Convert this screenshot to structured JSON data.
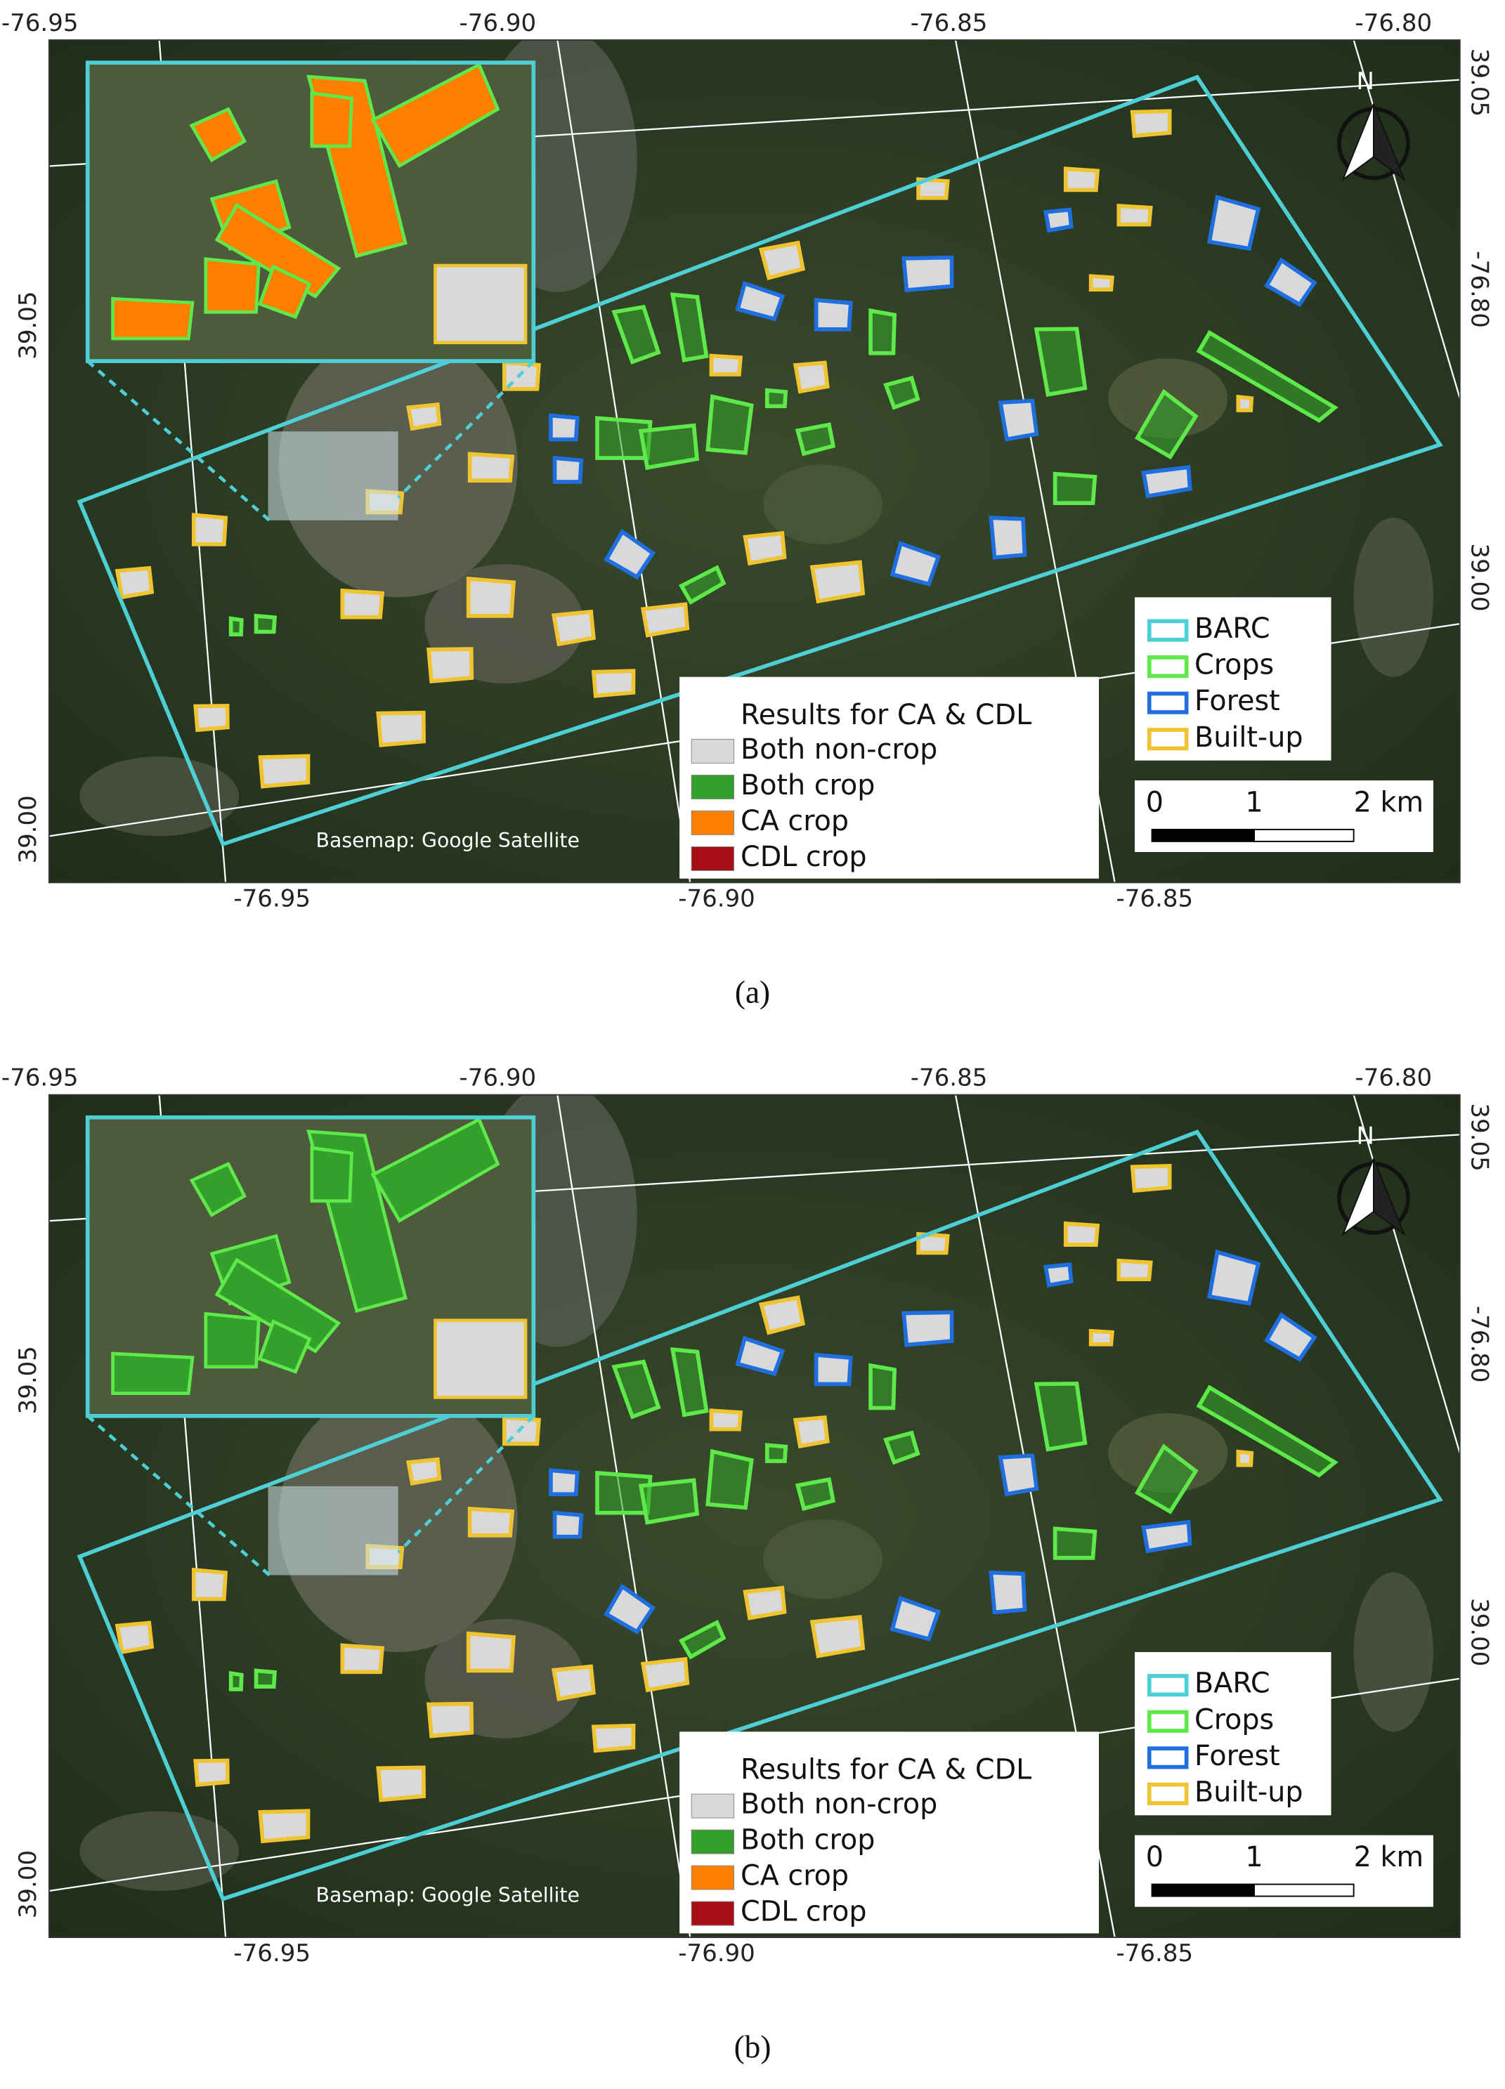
{
  "panels": [
    {
      "caption": "(a)",
      "top_ticks": [
        "-76.95",
        "-76.90",
        "-76.85",
        "-76.80"
      ],
      "bottom_ticks": [
        "-76.95",
        "-76.90",
        "-76.85"
      ],
      "left_ticks": [
        "39.05",
        "39.00"
      ],
      "right_ticks": [
        "39.05",
        "-76.80",
        "39.00"
      ],
      "credit": "Basemap: Google Satellite",
      "north": "N",
      "results_legend": {
        "title": "Results for CA & CDL",
        "items": [
          {
            "label": "Both non-crop",
            "color": "#d9d9d9"
          },
          {
            "label": "Both crop",
            "color": "#33a02c"
          },
          {
            "label": "CA crop",
            "color": "#ff7f00"
          },
          {
            "label": "CDL crop",
            "color": "#a50f15"
          }
        ]
      },
      "class_legend": {
        "items": [
          {
            "label": "BARC",
            "color": "#4ecfd6"
          },
          {
            "label": "Crops",
            "color": "#5ee84a"
          },
          {
            "label": "Forest",
            "color": "#1f6fe0"
          },
          {
            "label": "Built-up",
            "color": "#f0c330"
          }
        ]
      },
      "scale": [
        "0",
        "1",
        "2 km"
      ]
    },
    {
      "caption": "(b)",
      "top_ticks": [
        "-76.95",
        "-76.90",
        "-76.85",
        "-76.80"
      ],
      "bottom_ticks": [
        "-76.95",
        "-76.90",
        "-76.85"
      ],
      "left_ticks": [
        "39.05",
        "39.00"
      ],
      "right_ticks": [
        "39.05",
        "-76.80",
        "39.00"
      ],
      "credit": "Basemap: Google Satellite",
      "north": "N",
      "results_legend": {
        "title": "Results for CA & CDL",
        "items": [
          {
            "label": "Both non-crop",
            "color": "#d9d9d9"
          },
          {
            "label": "Both crop",
            "color": "#33a02c"
          },
          {
            "label": "CA crop",
            "color": "#ff7f00"
          },
          {
            "label": "CDL crop",
            "color": "#a50f15"
          }
        ]
      },
      "class_legend": {
        "items": [
          {
            "label": "BARC",
            "color": "#4ecfd6"
          },
          {
            "label": "Crops",
            "color": "#5ee84a"
          },
          {
            "label": "Forest",
            "color": "#1f6fe0"
          },
          {
            "label": "Built-up",
            "color": "#f0c330"
          }
        ]
      },
      "scale": [
        "0",
        "1",
        "2 km"
      ]
    }
  ]
}
